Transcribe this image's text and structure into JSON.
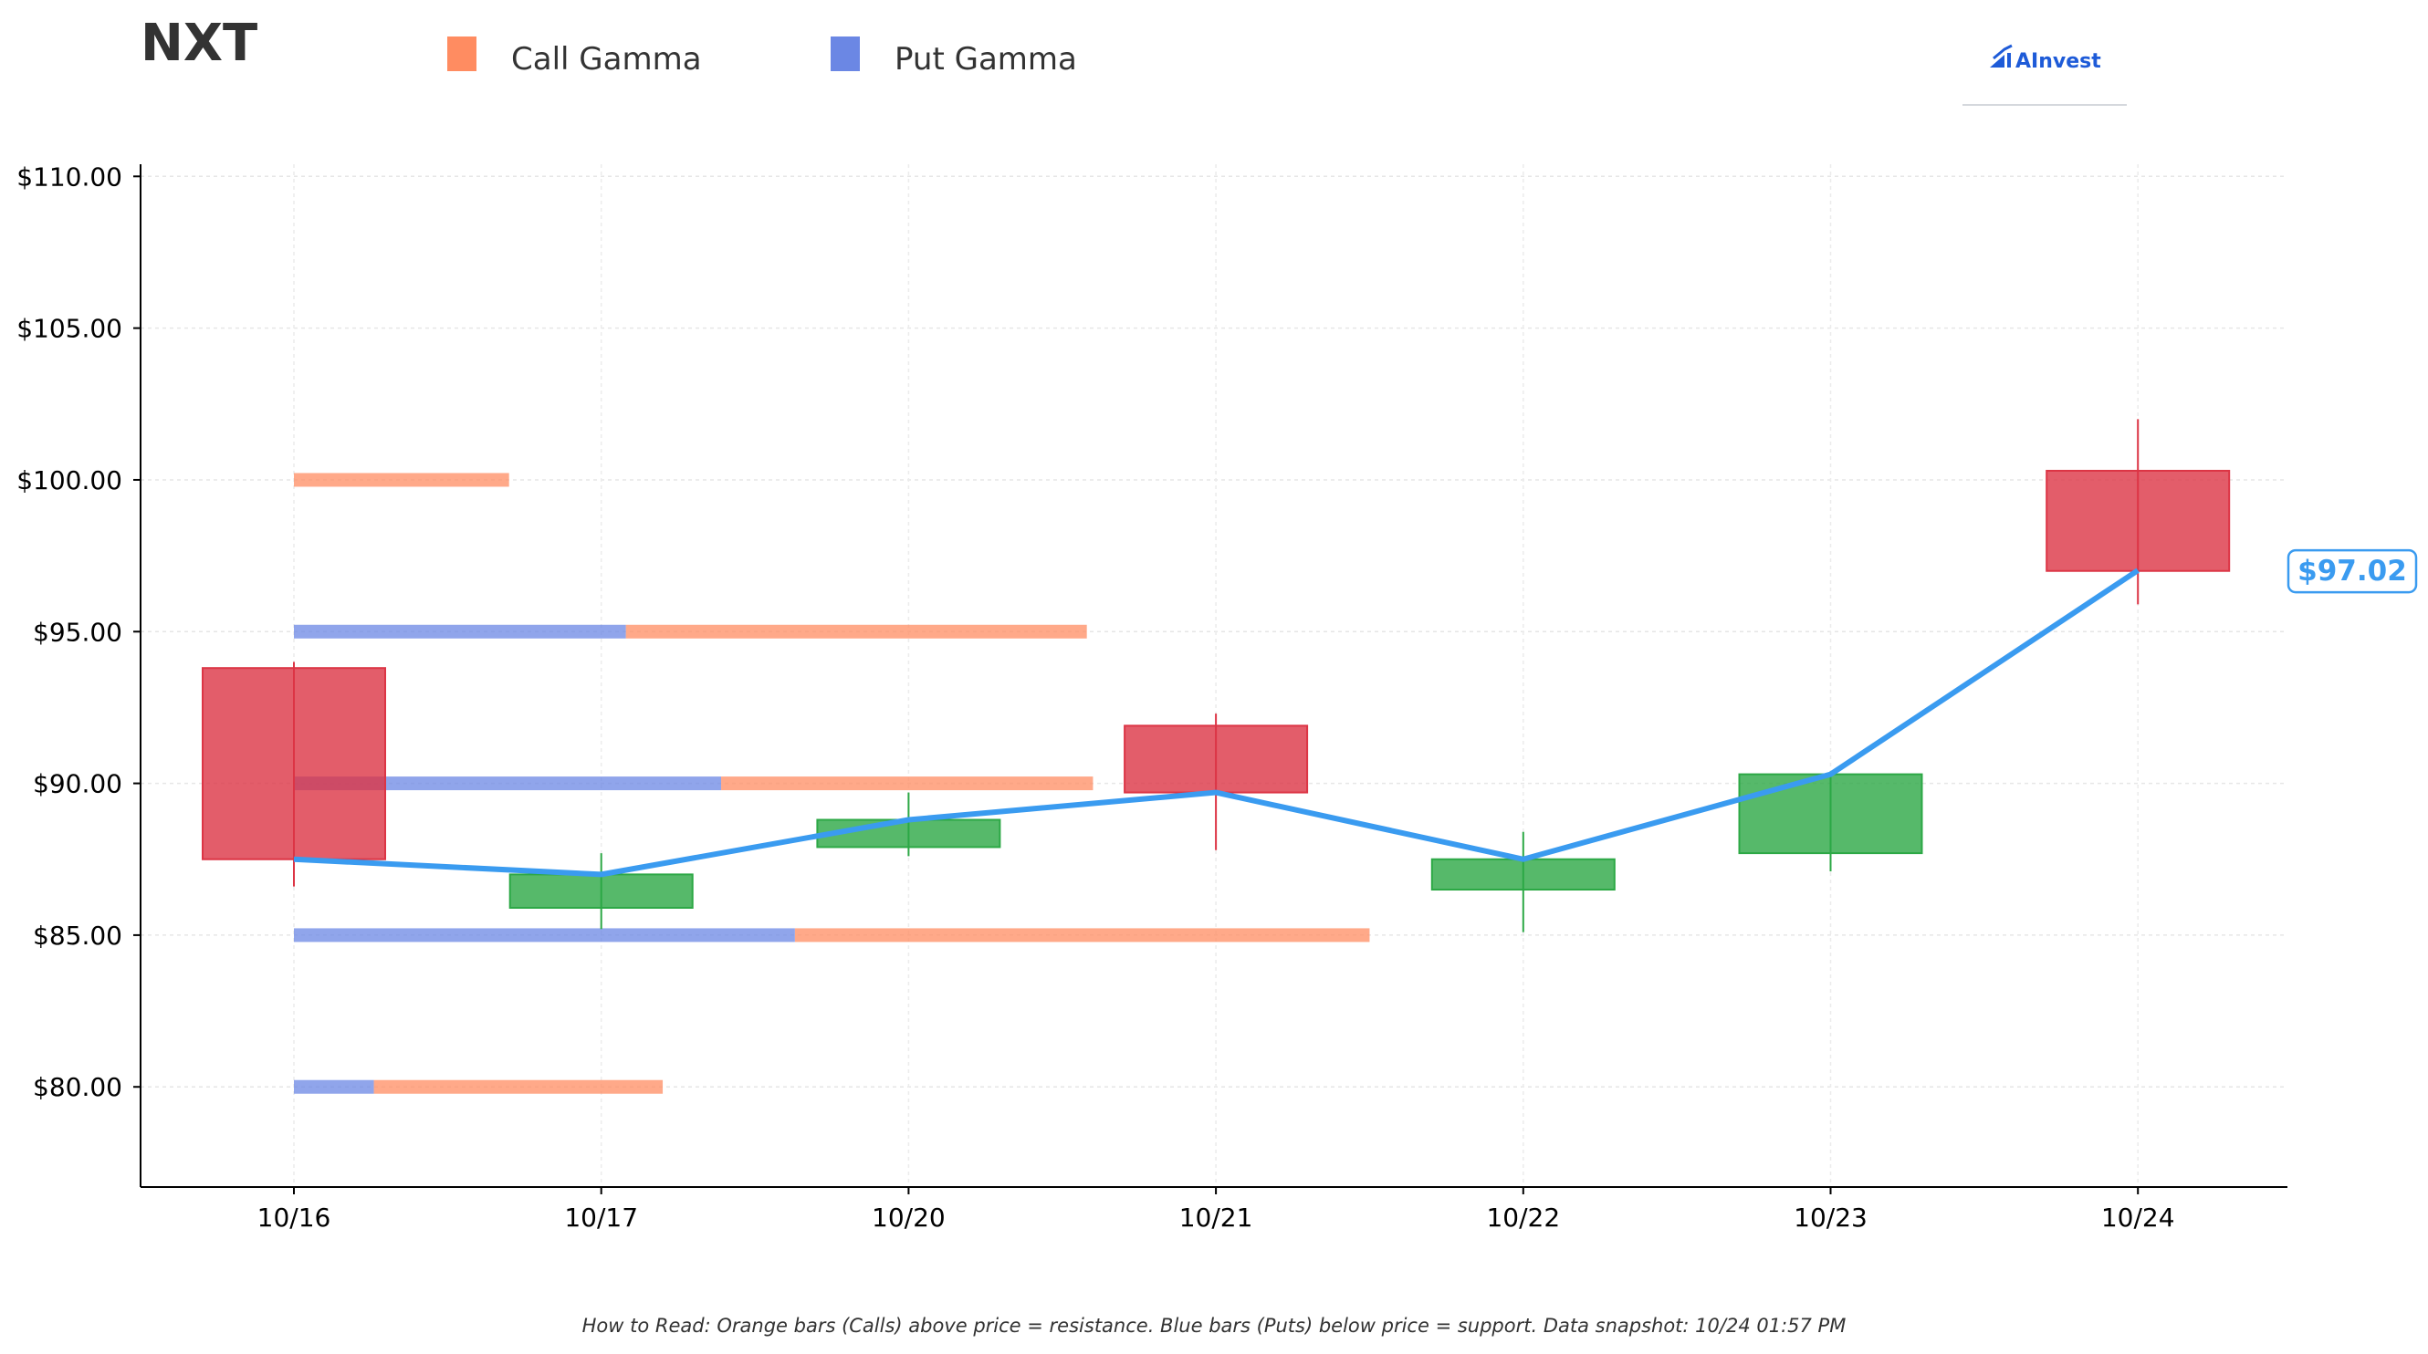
{
  "header": {
    "ticker": "NXT",
    "brand": "AInvest"
  },
  "legend": [
    {
      "label": "Call Gamma",
      "color": "#ff8c61"
    },
    {
      "label": "Put Gamma",
      "color": "#6b87e4"
    }
  ],
  "footer": {
    "note": "How to Read: Orange bars (Calls) above price = resistance. Blue bars (Puts) below price = support. Data snapshot: 10/24 01:57 PM"
  },
  "chart_data": {
    "type": "candlestick",
    "categories": [
      "10/16",
      "10/17",
      "10/20",
      "10/21",
      "10/22",
      "10/23",
      "10/24"
    ],
    "ylim": [
      76.7,
      110.4
    ],
    "yticks": [
      80,
      85,
      90,
      95,
      100,
      105,
      110
    ],
    "ytick_labels": [
      "$80.00",
      "$85.00",
      "$90.00",
      "$95.00",
      "$100.00",
      "$105.00",
      "$110.00"
    ],
    "grid": true,
    "candles": [
      {
        "date": "10/16",
        "open": 93.8,
        "high": 94.0,
        "low": 86.6,
        "close": 87.5
      },
      {
        "date": "10/17",
        "open": 85.9,
        "high": 87.7,
        "low": 85.2,
        "close": 87.0
      },
      {
        "date": "10/20",
        "open": 87.9,
        "high": 89.7,
        "low": 87.6,
        "close": 88.8
      },
      {
        "date": "10/21",
        "open": 91.9,
        "high": 92.3,
        "low": 87.8,
        "close": 89.7
      },
      {
        "date": "10/22",
        "open": 86.5,
        "high": 88.4,
        "low": 85.1,
        "close": 87.5
      },
      {
        "date": "10/23",
        "open": 87.7,
        "high": 90.4,
        "low": 87.1,
        "close": 90.3
      },
      {
        "date": "10/24",
        "open": 100.3,
        "high": 102.0,
        "low": 95.9,
        "close": 97.0
      }
    ],
    "close_line": {
      "color": "#3a9bf0",
      "values": [
        87.5,
        87.0,
        88.8,
        89.7,
        87.5,
        90.3,
        97.02
      ]
    },
    "last_price_label": "$97.02",
    "gamma_levels": [
      {
        "strike": 100,
        "put": 0.0,
        "call": 0.7
      },
      {
        "strike": 95,
        "put": 1.08,
        "call": 1.5
      },
      {
        "strike": 90,
        "put": 1.39,
        "call": 1.21
      },
      {
        "strike": 85,
        "put": 1.63,
        "call": 1.87
      },
      {
        "strike": 80,
        "put": 0.26,
        "call": 0.94
      }
    ],
    "colors": {
      "up": "#2ca845",
      "down": "#dc3545",
      "call": "#ff8c61",
      "put": "#6b87e4"
    }
  }
}
